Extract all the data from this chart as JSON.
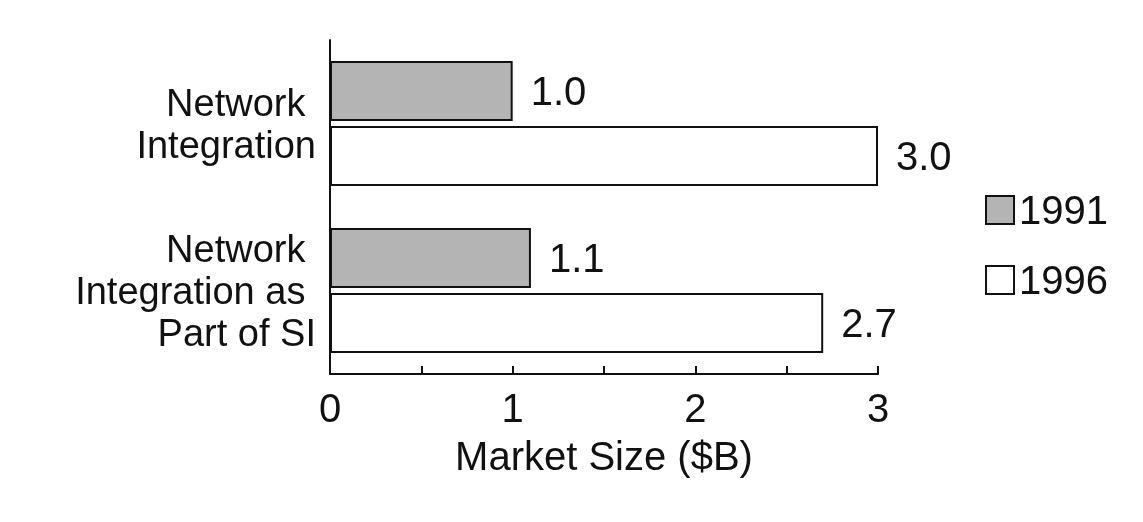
{
  "chart_data": {
    "type": "bar",
    "orientation": "horizontal",
    "xlabel": "Market Size ($B)",
    "categories": [
      "Network Integration",
      "Network Integration as Part of SI"
    ],
    "series": [
      {
        "name": "1991",
        "color": "#b4b4b4",
        "values": [
          1.0,
          1.1
        ],
        "value_labels": [
          "1.0",
          "1.1"
        ]
      },
      {
        "name": "1996",
        "color": "#ffffff",
        "values": [
          3.0,
          2.7
        ],
        "value_labels": [
          "3.0",
          "2.7"
        ]
      }
    ],
    "xlim": [
      0,
      3
    ],
    "xticks": [
      0,
      {
        "value": 0.5,
        "label": null
      },
      1,
      {
        "value": 1.5,
        "label": null
      },
      2,
      {
        "value": 2.5,
        "label": null
      },
      3
    ],
    "grid": false,
    "legend": "right"
  }
}
